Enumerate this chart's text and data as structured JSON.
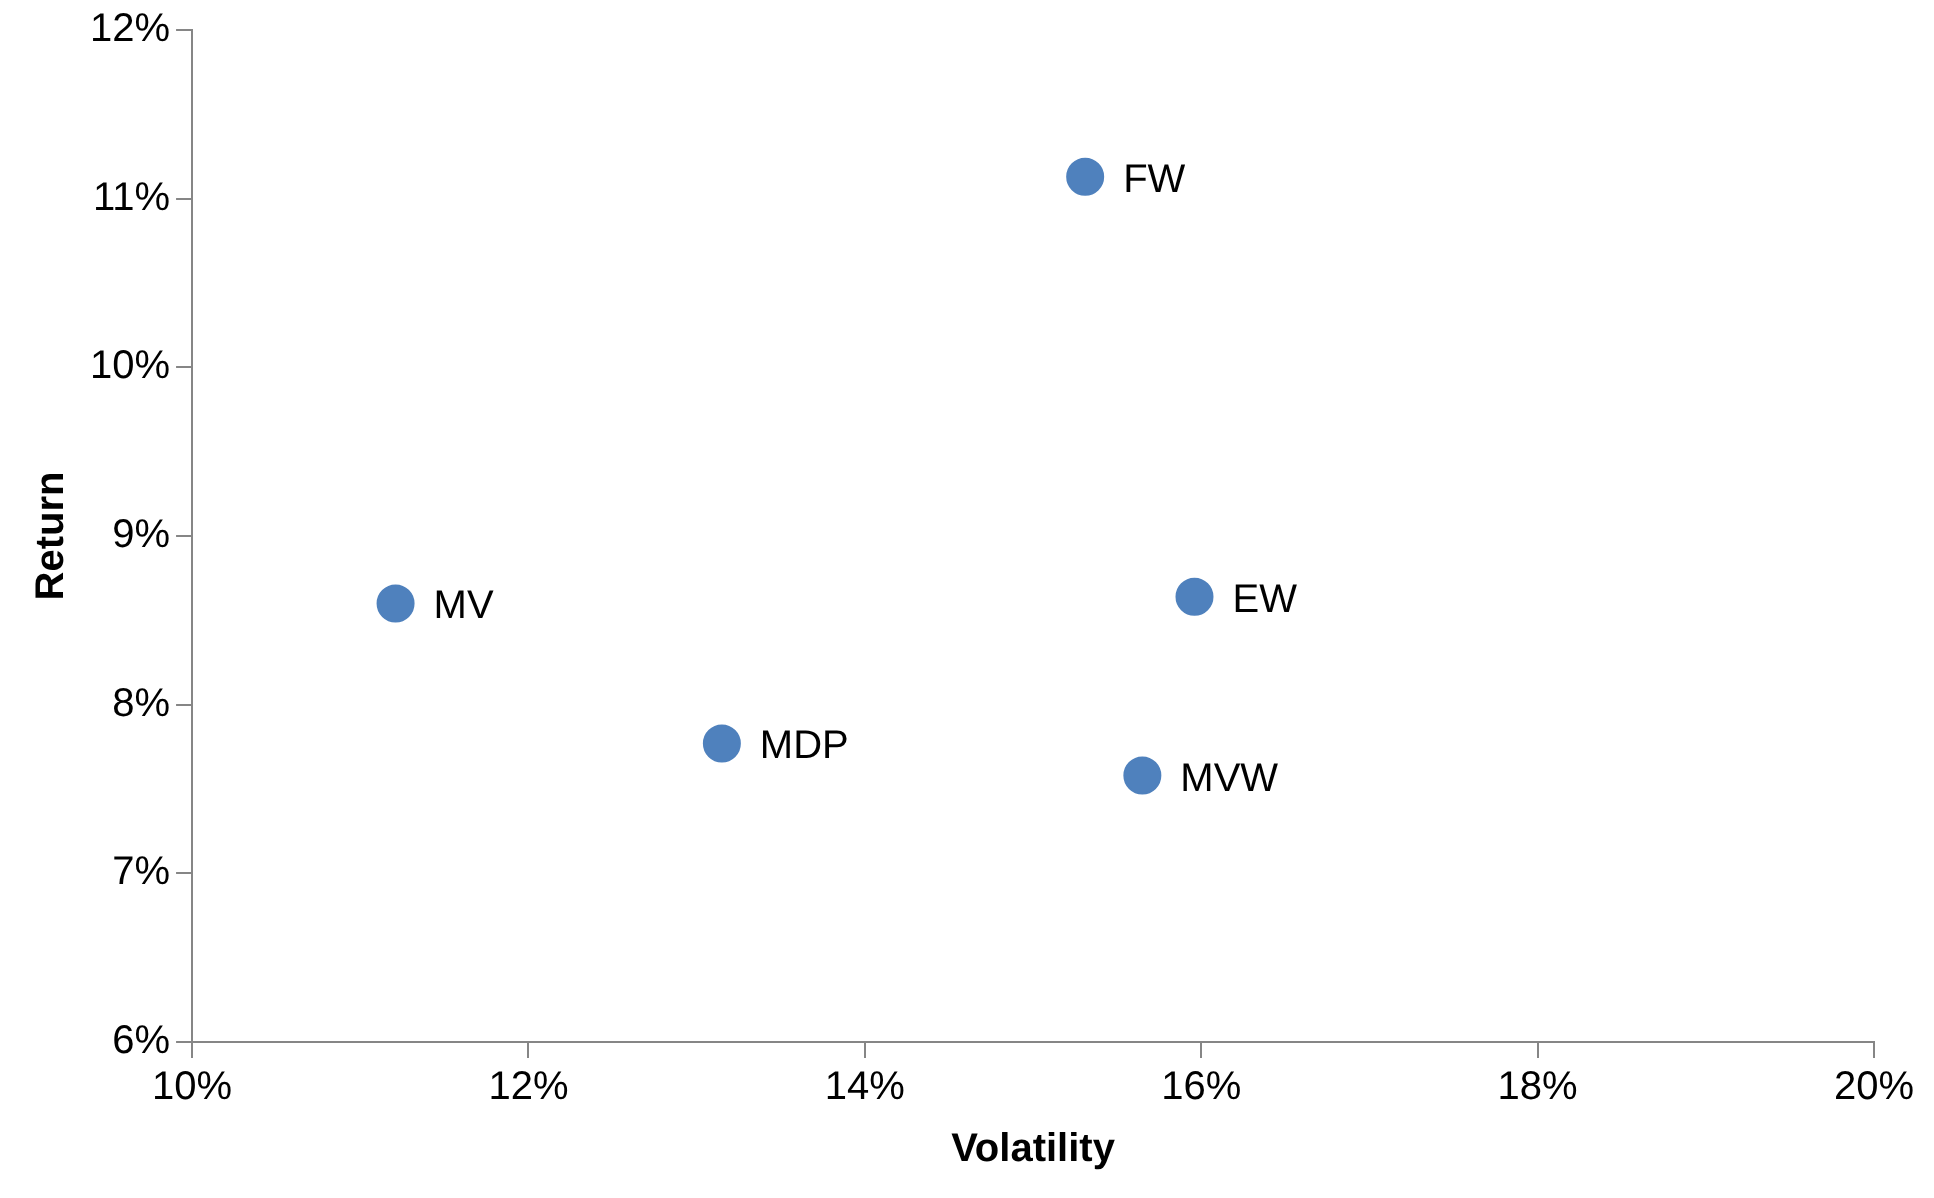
{
  "chart_data": {
    "type": "scatter",
    "xlabel": "Volatility",
    "ylabel": "Return",
    "series": [
      {
        "name": "FW",
        "color": "#4f81bd",
        "x": [
          15.31
        ],
        "values": [
          11.13
        ]
      },
      {
        "name": "EW",
        "color": "#4f81bd",
        "x": [
          15.96
        ],
        "values": [
          8.64
        ]
      },
      {
        "name": "MV",
        "color": "#4f81bd",
        "x": [
          11.21
        ],
        "values": [
          8.6
        ]
      },
      {
        "name": "MDP",
        "color": "#4f81bd",
        "x": [
          13.15
        ],
        "values": [
          7.77
        ]
      },
      {
        "name": "MVW",
        "color": "#4f81bd",
        "x": [
          15.65
        ],
        "values": [
          7.58
        ]
      }
    ],
    "xlim": [
      10,
      20
    ],
    "xticks": [
      {
        "value": 10,
        "label": "10%"
      },
      {
        "value": 12,
        "label": "12%"
      },
      {
        "value": 14,
        "label": "14%"
      },
      {
        "value": 16,
        "label": "16%"
      },
      {
        "value": 18,
        "label": "18%"
      },
      {
        "value": 20,
        "label": "20%"
      }
    ],
    "ylim": [
      6,
      12
    ],
    "yticks": [
      {
        "value": 6,
        "label": "6%"
      },
      {
        "value": 7,
        "label": "7%"
      },
      {
        "value": 8,
        "label": "8%"
      },
      {
        "value": 9,
        "label": "9%"
      },
      {
        "value": 10,
        "label": "10%"
      },
      {
        "value": 11,
        "label": "11%"
      },
      {
        "value": 12,
        "label": "12%"
      }
    ],
    "grid": false,
    "legend": false,
    "marker": "circle"
  }
}
